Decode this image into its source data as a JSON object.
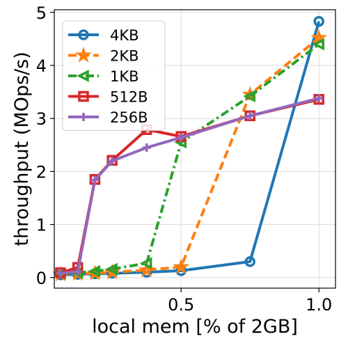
{
  "chart_data": {
    "type": "line",
    "xlabel": "local mem [% of 2GB]",
    "ylabel": "throughput (MOps/s)",
    "xlim": [
      0.04,
      1.06
    ],
    "ylim": [
      -0.2,
      5.05
    ],
    "xticks": [
      0.5,
      1.0
    ],
    "xtick_labels": [
      "0.5",
      "1.0"
    ],
    "yticks": [
      0,
      1,
      2,
      3,
      4,
      5
    ],
    "ytick_labels": [
      "0",
      "1",
      "2",
      "3",
      "4",
      "5"
    ],
    "grid": true,
    "legend_position": "top-left",
    "series": [
      {
        "name": "4KB",
        "color": "#1f77b4",
        "dash": "solid",
        "marker": "circle",
        "x": [
          0.0625,
          0.125,
          0.1875,
          0.25,
          0.375,
          0.5,
          0.75,
          1.0
        ],
        "y": [
          0.05,
          0.06,
          0.07,
          0.08,
          0.1,
          0.13,
          0.3,
          4.83
        ]
      },
      {
        "name": "2KB",
        "color": "#ff7f0e",
        "dash": "dashed",
        "marker": "star",
        "x": [
          0.0625,
          0.125,
          0.1875,
          0.25,
          0.375,
          0.5,
          0.75,
          1.0
        ],
        "y": [
          0.06,
          0.07,
          0.08,
          0.1,
          0.14,
          0.2,
          3.45,
          4.52
        ]
      },
      {
        "name": "1KB",
        "color": "#2ca02c",
        "dash": "dashdot",
        "marker": "triangle-left",
        "x": [
          0.0625,
          0.125,
          0.1875,
          0.25,
          0.375,
          0.5,
          0.75,
          1.0
        ],
        "y": [
          0.07,
          0.09,
          0.12,
          0.16,
          0.27,
          2.55,
          3.42,
          4.4
        ]
      },
      {
        "name": "512B",
        "color": "#d62728",
        "dash": "solid",
        "marker": "square",
        "x": [
          0.0625,
          0.125,
          0.1875,
          0.25,
          0.375,
          0.5,
          0.75,
          1.0
        ],
        "y": [
          0.09,
          0.19,
          1.85,
          2.21,
          2.79,
          2.66,
          3.05,
          3.36
        ]
      },
      {
        "name": "256B",
        "color": "#9467bd",
        "dash": "solid",
        "marker": "plus",
        "x": [
          0.0625,
          0.125,
          0.1875,
          0.25,
          0.375,
          0.5,
          0.75,
          1.0
        ],
        "y": [
          0.08,
          0.11,
          1.84,
          2.2,
          2.45,
          2.64,
          3.05,
          3.38
        ]
      }
    ]
  }
}
